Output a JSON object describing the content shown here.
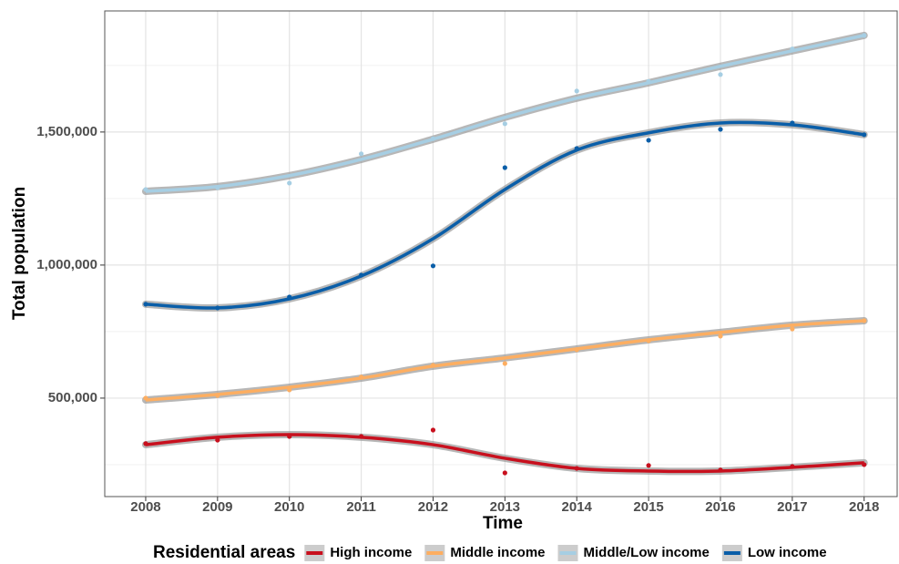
{
  "chart_data": {
    "type": "scatter-smooth",
    "x_label": "Time",
    "y_label": "Total population",
    "legend_title": "Residential areas",
    "legend_position": "bottom",
    "x": [
      2008,
      2009,
      2010,
      2011,
      2012,
      2013,
      2014,
      2015,
      2016,
      2017,
      2018
    ],
    "xlim": [
      2007.43,
      2018.46
    ],
    "xticks": [
      2008,
      2009,
      2010,
      2011,
      2012,
      2013,
      2014,
      2015,
      2016,
      2017,
      2018
    ],
    "ylim": [
      130000,
      1955000
    ],
    "yticks": [
      {
        "value": 500000,
        "label": "500,000"
      },
      {
        "value": 1000000,
        "label": "1,000,000"
      },
      {
        "value": 1500000,
        "label": "1,500,000"
      }
    ],
    "minor_yticks": [
      250000,
      750000,
      1250000,
      1750000
    ],
    "grid": true,
    "series": [
      {
        "name": "High income",
        "color": "#c8101e",
        "values": [
          329000,
          342000,
          356000,
          356000,
          380000,
          219000,
          236000,
          247000,
          230000,
          243000,
          250000
        ],
        "fit": [
          325000,
          353000,
          363000,
          353000,
          325000,
          274000,
          236000,
          226000,
          226000,
          240000,
          257000
        ]
      },
      {
        "name": "Middle income",
        "color": "#fdae61",
        "values": [
          500000,
          510000,
          531000,
          579000,
          623000,
          630000,
          682000,
          716000,
          733000,
          760000,
          791000
        ],
        "fit": [
          493000,
          514000,
          541000,
          575000,
          620000,
          651000,
          685000,
          719000,
          747000,
          774000,
          791000
        ]
      },
      {
        "name": "Middle/Low income",
        "color": "#a6cee3",
        "values": [
          1284000,
          1291000,
          1308000,
          1418000,
          1475000,
          1531000,
          1654000,
          1690000,
          1716000,
          1812000,
          1863000
        ],
        "fit": [
          1277000,
          1295000,
          1336000,
          1397000,
          1473000,
          1555000,
          1627000,
          1685000,
          1747000,
          1805000,
          1863000
        ]
      },
      {
        "name": "Low income",
        "color": "#0a5ea8",
        "values": [
          853000,
          839000,
          880000,
          962000,
          997000,
          1366000,
          1438000,
          1469000,
          1510000,
          1534000,
          1490000
        ],
        "fit": [
          853000,
          839000,
          873000,
          959000,
          1099000,
          1284000,
          1432000,
          1497000,
          1534000,
          1527000,
          1490000
        ]
      }
    ]
  }
}
